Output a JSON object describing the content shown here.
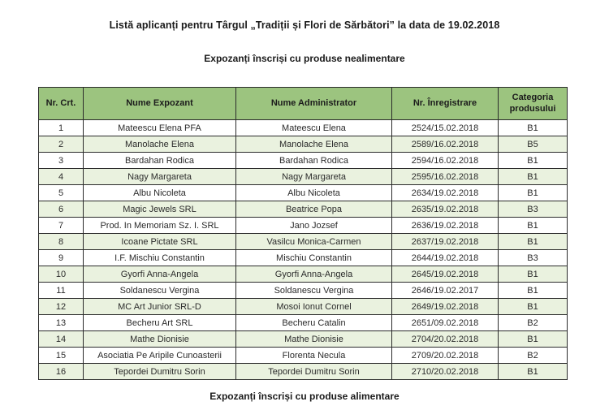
{
  "document": {
    "title": "Listă aplicanți pentru Târgul „Tradiții și Flori de Sărbători” la data de 19.02.2018",
    "section_nonfood_heading": "Expozanți înscriși cu produse nealimentare",
    "section_food_heading": "Expozanți înscriși cu produse alimentare"
  },
  "table": {
    "columns": [
      "Nr. Crt.",
      "Nume Expozant",
      "Nume Administrator",
      "Nr. Înregistrare",
      "Categoria produsului"
    ],
    "rows": [
      [
        "1",
        "Mateescu Elena PFA",
        "Mateescu Elena",
        "2524/15.02.2018",
        "B1"
      ],
      [
        "2",
        "Manolache Elena",
        "Manolache Elena",
        "2589/16.02.2018",
        "B5"
      ],
      [
        "3",
        "Bardahan Rodica",
        "Bardahan Rodica",
        "2594/16.02.2018",
        "B1"
      ],
      [
        "4",
        "Nagy Margareta",
        "Nagy Margareta",
        "2595/16.02.2018",
        "B1"
      ],
      [
        "5",
        "Albu Nicoleta",
        "Albu Nicoleta",
        "2634/19.02.2018",
        "B1"
      ],
      [
        "6",
        "Magic Jewels SRL",
        "Beatrice Popa",
        "2635/19.02.2018",
        "B3"
      ],
      [
        "7",
        "Prod. In Memoriam Sz. I. SRL",
        "Jano Jozsef",
        "2636/19.02.2018",
        "B1"
      ],
      [
        "8",
        "Icoane Pictate SRL",
        "Vasilcu Monica-Carmen",
        "2637/19.02.2018",
        "B1"
      ],
      [
        "9",
        "I.F. Mischiu Constantin",
        "Mischiu Constantin",
        "2644/19.02.2018",
        "B3"
      ],
      [
        "10",
        "Gyorfi Anna-Angela",
        "Gyorfi Anna-Angela",
        "2645/19.02.2018",
        "B1"
      ],
      [
        "11",
        "Soldanescu Vergina",
        "Soldanescu Vergina",
        "2646/19.02.2017",
        "B1"
      ],
      [
        "12",
        "MC Art Junior SRL-D",
        "Mosoi Ionut Cornel",
        "2649/19.02.2018",
        "B1"
      ],
      [
        "13",
        "Becheru Art SRL",
        "Becheru Catalin",
        "2651/09.02.2018",
        "B2"
      ],
      [
        "14",
        "Mathe Dionisie",
        "Mathe Dionisie",
        "2704/20.02.2018",
        "B1"
      ],
      [
        "15",
        "Asociatia Pe Aripile Cunoasterii",
        "Florenta Necula",
        "2709/20.02.2018",
        "B2"
      ],
      [
        "16",
        "Tepordei Dumitru Sorin",
        "Tepordei Dumitru Sorin",
        "2710/20.02.2018",
        "B1"
      ]
    ]
  },
  "colors": {
    "header_bg": "#9cc47f",
    "row_alt_bg": "#eaf2df",
    "border": "#2b2b2b",
    "text": "#2b2b2b"
  }
}
